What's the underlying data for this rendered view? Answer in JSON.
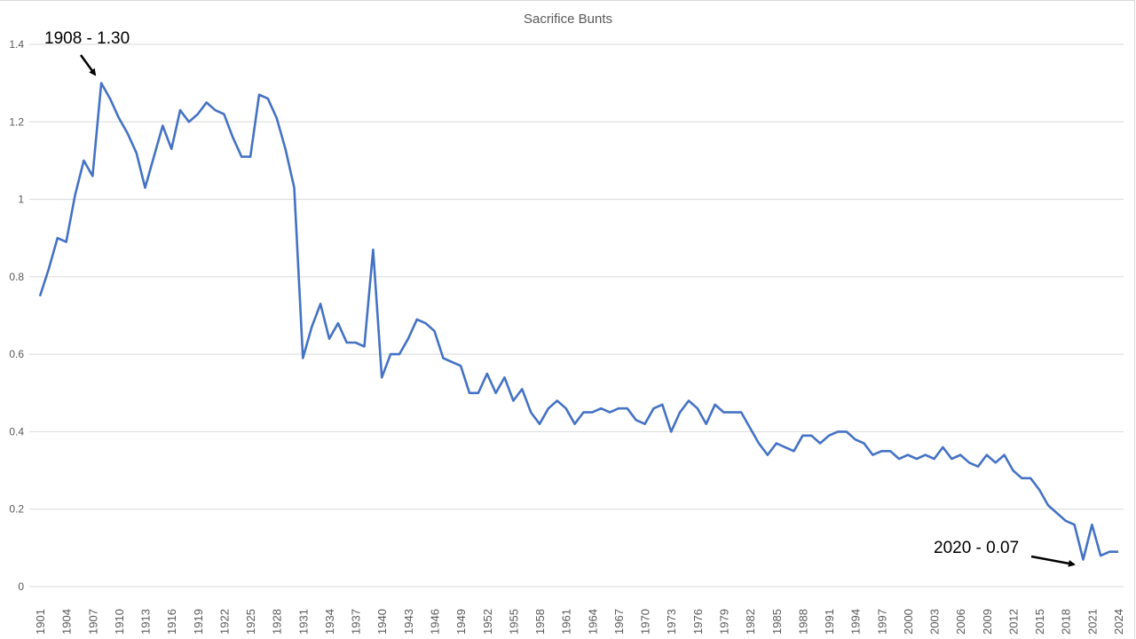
{
  "chart_data": {
    "type": "line",
    "title": "Sacrifice Bunts",
    "xlabel": "",
    "ylabel": "",
    "ylim": [
      0,
      1.4
    ],
    "yticks": [
      0,
      0.2,
      0.4,
      0.6,
      0.8,
      1,
      1.2,
      1.4
    ],
    "ytick_labels": [
      "0",
      "0.2",
      "0.4",
      "0.6",
      "0.8",
      "1",
      "1.2",
      "1.4"
    ],
    "xtick_labels": [
      "1901",
      "1904",
      "1907",
      "1910",
      "1913",
      "1916",
      "1919",
      "1922",
      "1925",
      "1928",
      "1931",
      "1934",
      "1937",
      "1940",
      "1943",
      "1946",
      "1949",
      "1952",
      "1955",
      "1958",
      "1961",
      "1964",
      "1967",
      "1970",
      "1973",
      "1976",
      "1979",
      "1982",
      "1985",
      "1988",
      "1991",
      "1994",
      "1997",
      "2000",
      "2003",
      "2006",
      "2009",
      "2012",
      "2015",
      "2018",
      "2021",
      "2024"
    ],
    "grid": true,
    "legend": null,
    "x_start": 1901,
    "x_end": 2024,
    "series": [
      {
        "name": "Sacrifice Bunts",
        "color": "#4472c4",
        "values": [
          0.75,
          0.82,
          0.9,
          0.89,
          1.01,
          1.1,
          1.06,
          1.3,
          1.26,
          1.21,
          1.17,
          1.12,
          1.03,
          1.11,
          1.19,
          1.13,
          1.23,
          1.2,
          1.22,
          1.25,
          1.23,
          1.22,
          1.16,
          1.11,
          1.11,
          1.27,
          1.26,
          1.21,
          1.13,
          1.03,
          0.59,
          0.67,
          0.73,
          0.64,
          0.68,
          0.63,
          0.63,
          0.62,
          0.87,
          0.54,
          0.6,
          0.6,
          0.64,
          0.69,
          0.68,
          0.66,
          0.59,
          0.58,
          0.57,
          0.5,
          0.5,
          0.55,
          0.5,
          0.54,
          0.48,
          0.51,
          0.45,
          0.42,
          0.46,
          0.48,
          0.46,
          0.42,
          0.45,
          0.45,
          0.46,
          0.45,
          0.46,
          0.46,
          0.43,
          0.42,
          0.46,
          0.47,
          0.4,
          0.45,
          0.48,
          0.46,
          0.42,
          0.47,
          0.45,
          0.45,
          0.45,
          0.41,
          0.37,
          0.34,
          0.37,
          0.36,
          0.35,
          0.39,
          0.39,
          0.37,
          0.39,
          0.4,
          0.4,
          0.38,
          0.37,
          0.34,
          0.35,
          0.35,
          0.33,
          0.34,
          0.33,
          0.34,
          0.33,
          0.36,
          0.33,
          0.34,
          0.32,
          0.31,
          0.34,
          0.32,
          0.34,
          0.3,
          0.28,
          0.28,
          0.25,
          0.21,
          0.19,
          0.17,
          0.16,
          0.07,
          0.16,
          0.08,
          0.09,
          0.09
        ]
      }
    ],
    "annotations": [
      {
        "text": "1908 - 1.30",
        "year": 1908,
        "value": 1.3
      },
      {
        "text": "2020 - 0.07",
        "year": 2020,
        "value": 0.07
      }
    ]
  }
}
